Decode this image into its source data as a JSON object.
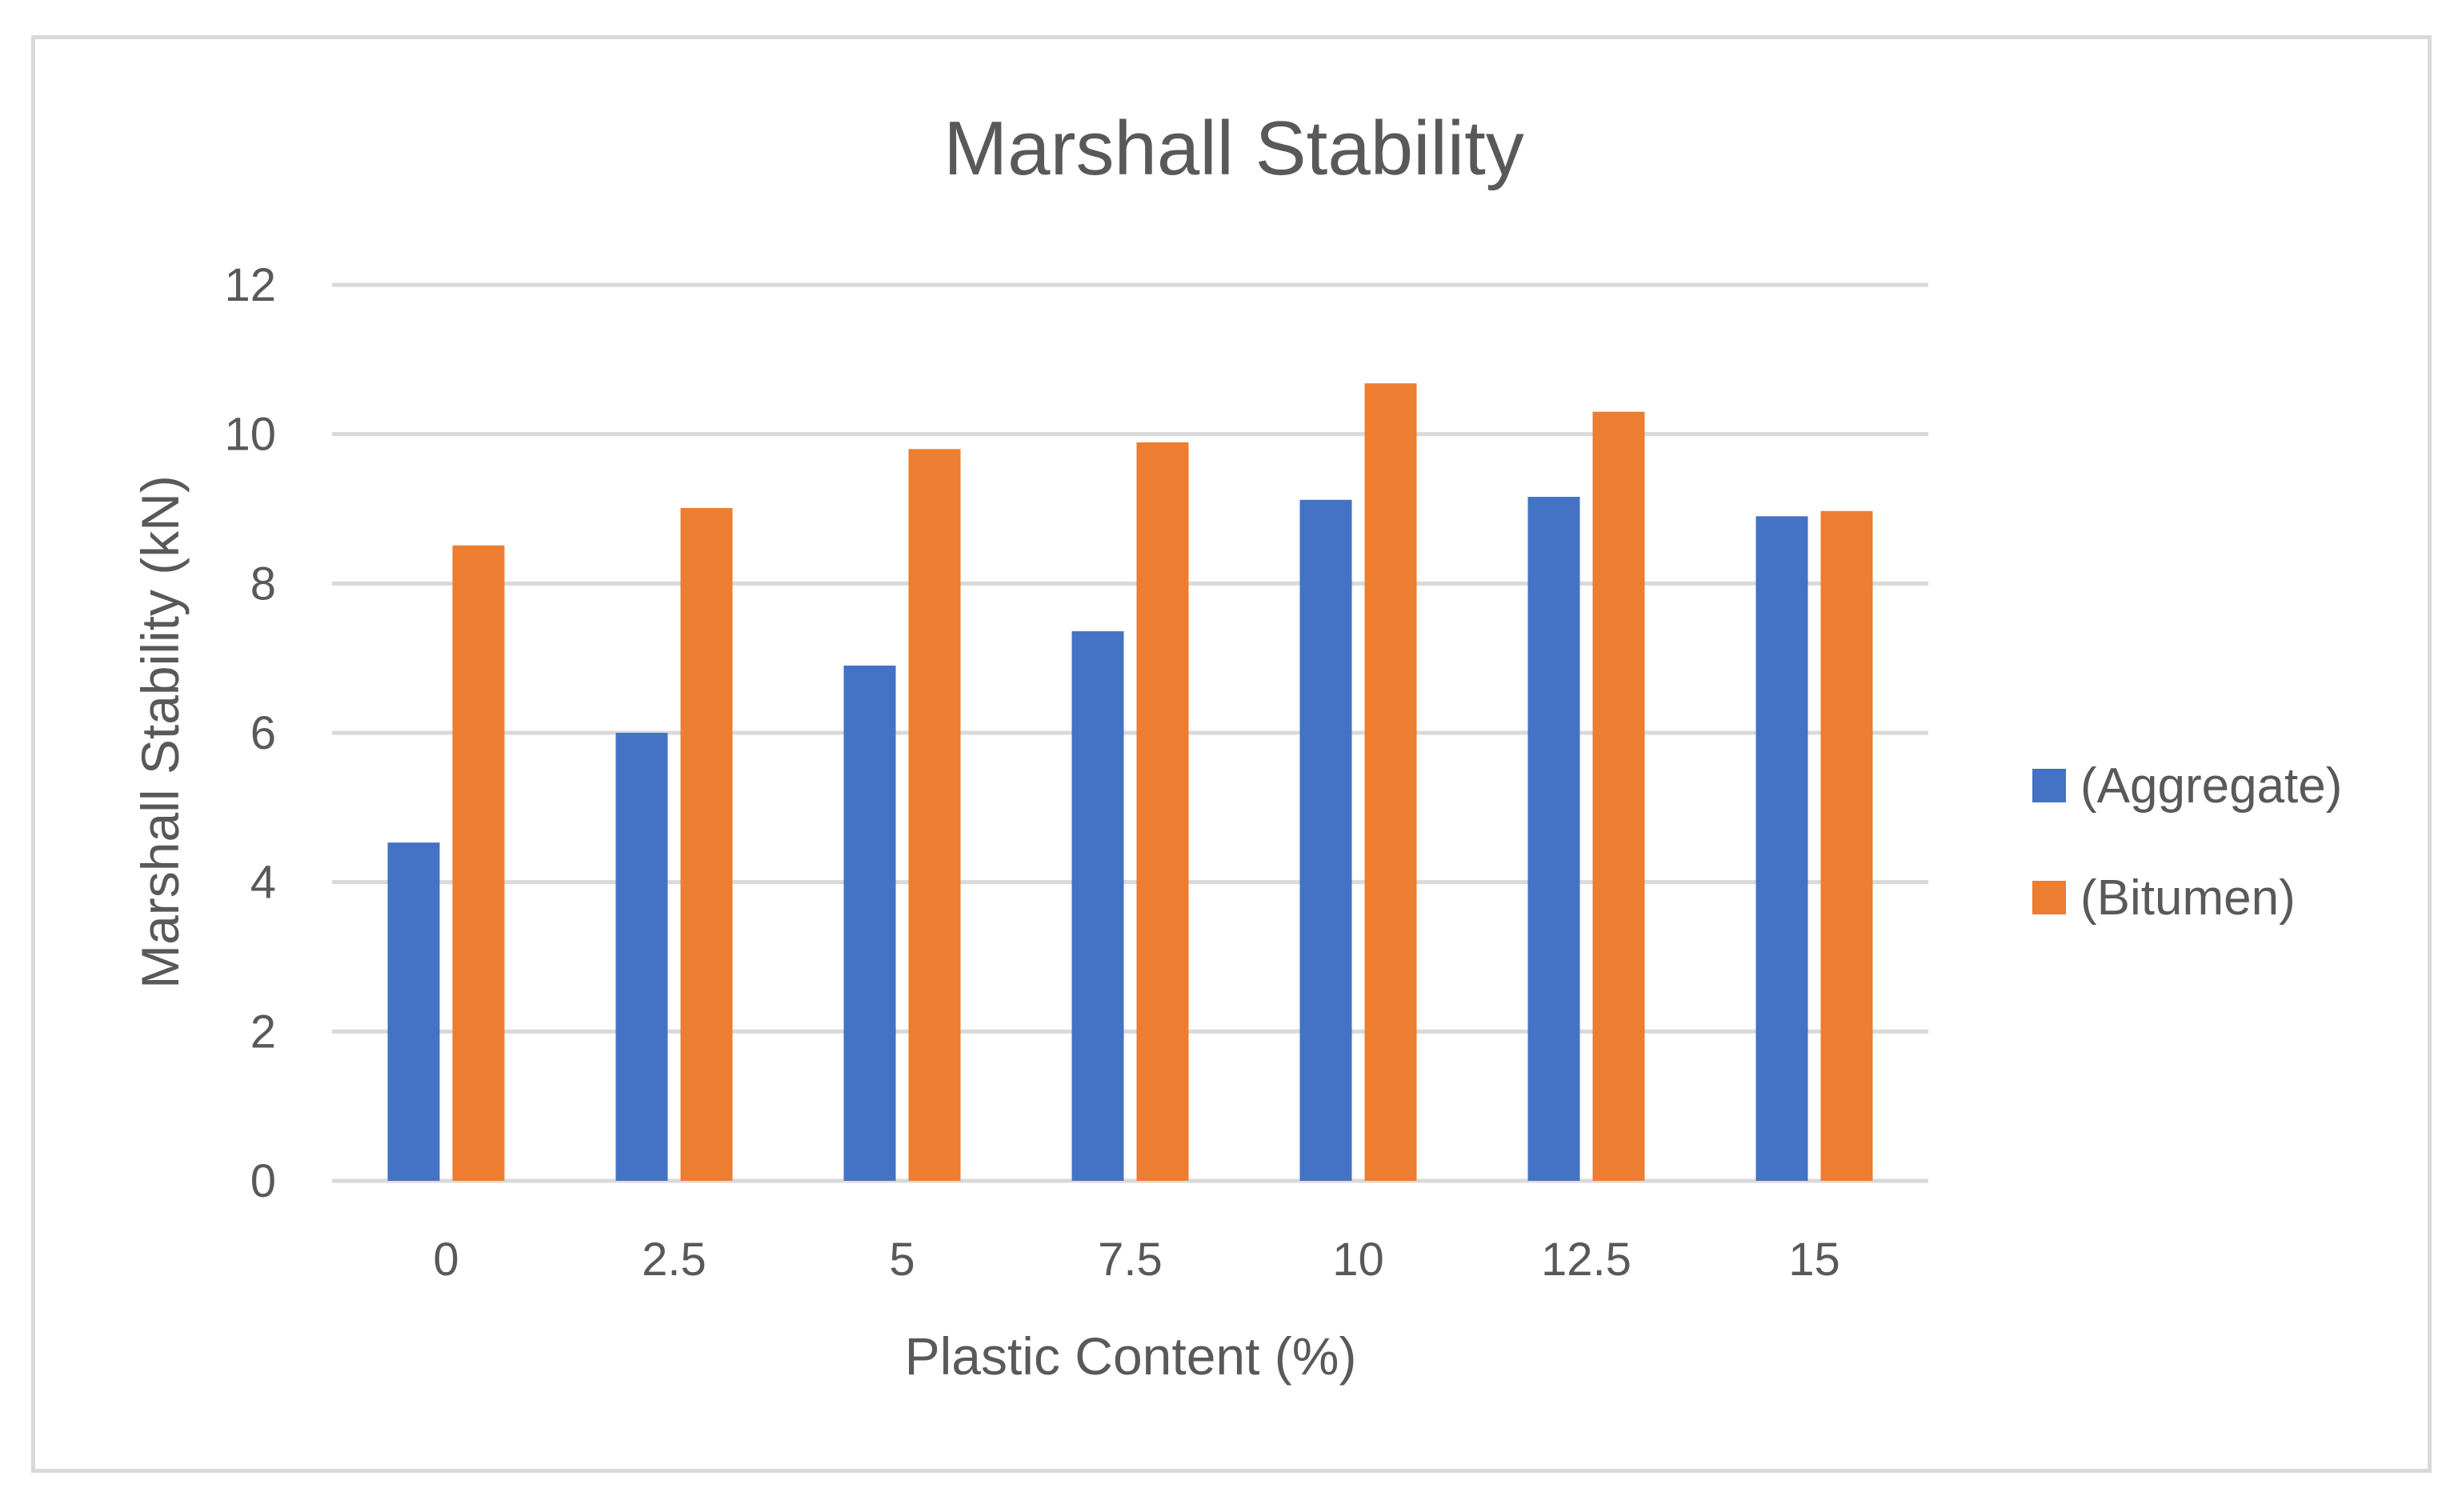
{
  "chart_data": {
    "type": "bar",
    "title": "Marshall Stability",
    "xlabel": "Plastic Content (%)",
    "ylabel": "Marshall Stability (kN)",
    "categories": [
      "0",
      "2.5",
      "5",
      "7.5",
      "10",
      "12.5",
      "15"
    ],
    "series": [
      {
        "name": "(Aggregate)",
        "color": "#4472C4",
        "values": [
          4.53,
          6.0,
          6.9,
          7.36,
          9.12,
          9.16,
          8.9
        ]
      },
      {
        "name": "(Bitumen)",
        "color": "#ED7D31",
        "values": [
          8.51,
          9.01,
          9.8,
          9.89,
          10.68,
          10.3,
          8.97
        ]
      }
    ],
    "ylim": [
      0,
      12
    ],
    "yticks": [
      0,
      2,
      4,
      6,
      8,
      10,
      12
    ],
    "grid": true,
    "legend_position": "right",
    "gridline_color": "#d9d9d9"
  }
}
